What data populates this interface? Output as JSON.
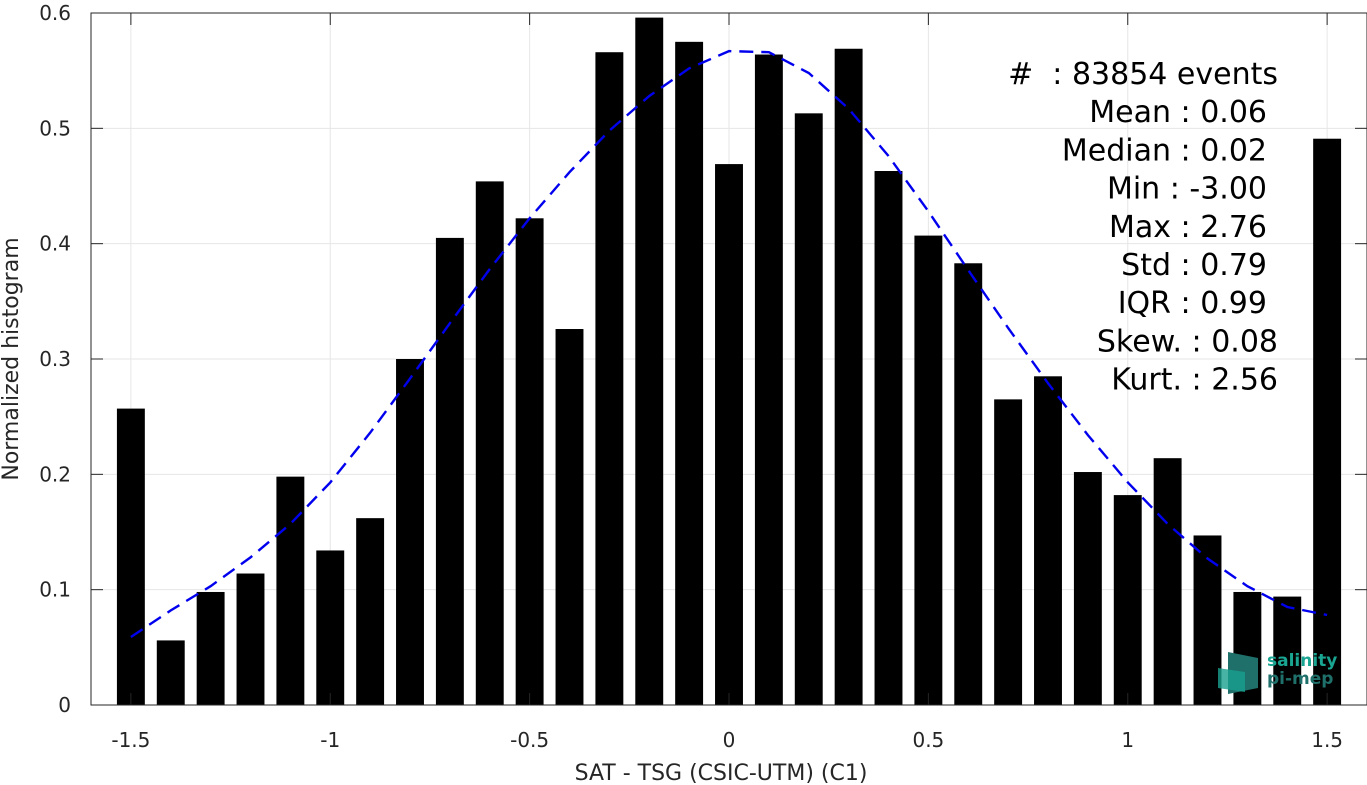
{
  "chart_data": {
    "type": "bar",
    "xlabel": "SAT - TSG (CSIC-UTM) (C1)",
    "ylabel": "Normalized histogram",
    "xlim": [
      -1.6,
      1.6
    ],
    "ylim": [
      0,
      0.6
    ],
    "x_ticks": [
      -1.5,
      -1,
      -0.5,
      0,
      0.5,
      1,
      1.5
    ],
    "x_tick_labels": [
      "-1.5",
      "-1",
      "-0.5",
      "0",
      "0.5",
      "1",
      "1.5"
    ],
    "y_ticks": [
      0,
      0.1,
      0.2,
      0.3,
      0.4,
      0.5,
      0.6
    ],
    "y_tick_labels": [
      "0",
      "0.1",
      "0.2",
      "0.3",
      "0.4",
      "0.5",
      "0.6"
    ],
    "grid": true,
    "bar_color": "#000000",
    "bar_width": 0.07,
    "bars": {
      "x": [
        -1.5,
        -1.4,
        -1.3,
        -1.2,
        -1.1,
        -1.0,
        -0.9,
        -0.8,
        -0.7,
        -0.6,
        -0.5,
        -0.4,
        -0.3,
        -0.2,
        -0.1,
        0.0,
        0.1,
        0.2,
        0.3,
        0.4,
        0.5,
        0.6,
        0.7,
        0.8,
        0.9,
        1.0,
        1.1,
        1.2,
        1.3,
        1.4,
        1.5
      ],
      "values": [
        0.257,
        0.056,
        0.098,
        0.114,
        0.198,
        0.134,
        0.162,
        0.3,
        0.405,
        0.454,
        0.422,
        0.326,
        0.566,
        0.596,
        0.575,
        0.469,
        0.564,
        0.513,
        0.569,
        0.463,
        0.407,
        0.383,
        0.265,
        0.285,
        0.202,
        0.182,
        0.214,
        0.147,
        0.098,
        0.094,
        0.491
      ]
    },
    "fit_curve": {
      "style": "dashed",
      "color": "#0000ee",
      "x": [
        -1.5,
        -1.4,
        -1.3,
        -1.2,
        -1.1,
        -1.0,
        -0.9,
        -0.8,
        -0.7,
        -0.6,
        -0.5,
        -0.4,
        -0.3,
        -0.2,
        -0.1,
        0.0,
        0.1,
        0.2,
        0.3,
        0.4,
        0.5,
        0.6,
        0.7,
        0.8,
        0.9,
        1.0,
        1.1,
        1.2,
        1.3,
        1.4,
        1.5
      ],
      "y": [
        0.059,
        0.082,
        0.103,
        0.128,
        0.157,
        0.193,
        0.236,
        0.283,
        0.331,
        0.378,
        0.422,
        0.462,
        0.498,
        0.528,
        0.552,
        0.567,
        0.566,
        0.548,
        0.517,
        0.476,
        0.428,
        0.377,
        0.327,
        0.279,
        0.234,
        0.193,
        0.157,
        0.127,
        0.103,
        0.085,
        0.078
      ]
    },
    "annotations": [
      "#  : 83854 events",
      "Mean : 0.06",
      "Median : 0.02",
      "Min : -3.00",
      "Max : 2.76",
      "Std : 0.79",
      "IQR : 0.99",
      "Skew. : 0.08",
      "Kurt. : 2.56"
    ]
  },
  "logo": {
    "line1": "salinity",
    "line2": "pi-mep",
    "color": "#19a592"
  }
}
